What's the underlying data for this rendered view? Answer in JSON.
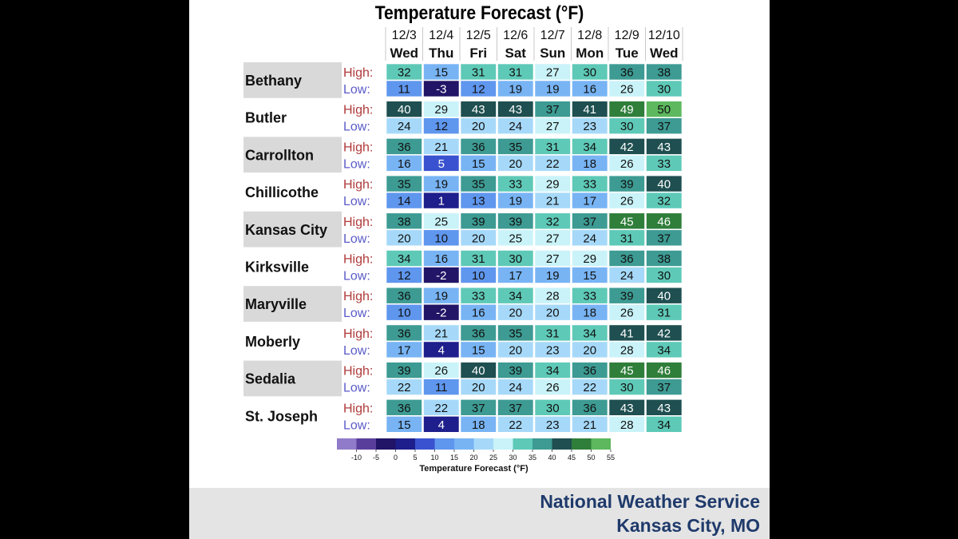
{
  "footer": {
    "line1": "National Weather Service",
    "line2": "Kansas City, MO"
  },
  "colors": {
    "panel_bg": "#ffffff",
    "row_shade": "#d9d9d9",
    "high_label": "#b03a3a",
    "low_label": "#5b5bc8",
    "footer_text": "#1f3a6b",
    "footer_bg": "#e4e4e4"
  },
  "chart_data": {
    "type": "table",
    "title": "Temperature Forecast (°F)",
    "dates": [
      "12/3",
      "12/4",
      "12/5",
      "12/6",
      "12/7",
      "12/8",
      "12/9",
      "12/10"
    ],
    "days": [
      "Wed",
      "Thu",
      "Fri",
      "Sat",
      "Sun",
      "Mon",
      "Tue",
      "Wed"
    ],
    "row_labels": {
      "high": "High:",
      "low": "Low:"
    },
    "cities": [
      {
        "name": "Bethany",
        "high": [
          32,
          15,
          31,
          31,
          27,
          30,
          36,
          38
        ],
        "low": [
          11,
          -3,
          12,
          19,
          19,
          16,
          26,
          30
        ]
      },
      {
        "name": "Butler",
        "high": [
          40,
          29,
          43,
          43,
          37,
          41,
          49,
          50
        ],
        "low": [
          24,
          12,
          20,
          24,
          27,
          23,
          30,
          37
        ]
      },
      {
        "name": "Carrollton",
        "high": [
          36,
          21,
          36,
          35,
          31,
          34,
          42,
          43
        ],
        "low": [
          16,
          5,
          15,
          20,
          22,
          18,
          26,
          33
        ]
      },
      {
        "name": "Chillicothe",
        "high": [
          35,
          19,
          35,
          33,
          29,
          33,
          39,
          40
        ],
        "low": [
          14,
          1,
          13,
          19,
          21,
          17,
          26,
          32
        ]
      },
      {
        "name": "Kansas City",
        "high": [
          38,
          25,
          39,
          39,
          32,
          37,
          45,
          46
        ],
        "low": [
          20,
          10,
          20,
          25,
          27,
          24,
          31,
          37
        ]
      },
      {
        "name": "Kirksville",
        "high": [
          34,
          16,
          31,
          30,
          27,
          29,
          36,
          38
        ],
        "low": [
          12,
          -2,
          10,
          17,
          19,
          15,
          24,
          30
        ]
      },
      {
        "name": "Maryville",
        "high": [
          36,
          19,
          33,
          34,
          28,
          33,
          39,
          40
        ],
        "low": [
          10,
          -2,
          16,
          20,
          20,
          18,
          26,
          31
        ]
      },
      {
        "name": "Moberly",
        "high": [
          36,
          21,
          36,
          35,
          31,
          34,
          41,
          42
        ],
        "low": [
          17,
          4,
          15,
          20,
          23,
          20,
          28,
          34
        ]
      },
      {
        "name": "Sedalia",
        "high": [
          39,
          26,
          40,
          39,
          34,
          36,
          45,
          46
        ],
        "low": [
          22,
          11,
          20,
          24,
          26,
          22,
          30,
          37
        ]
      },
      {
        "name": "St. Joseph",
        "high": [
          36,
          22,
          37,
          37,
          30,
          36,
          43,
          43
        ],
        "low": [
          15,
          4,
          18,
          22,
          23,
          21,
          28,
          34
        ]
      }
    ],
    "color_scale": {
      "label": "Temperature Forecast (°F)",
      "ticks": [
        -10,
        -5,
        0,
        5,
        10,
        15,
        20,
        25,
        30,
        35,
        40,
        45,
        50,
        55
      ],
      "bins": [
        {
          "min": -15,
          "max": -10,
          "color": "#8f7bc9"
        },
        {
          "min": -10,
          "max": -5,
          "color": "#5a3e9c"
        },
        {
          "min": -5,
          "max": 0,
          "color": "#221466"
        },
        {
          "min": 0,
          "max": 5,
          "color": "#1e1e8c"
        },
        {
          "min": 5,
          "max": 10,
          "color": "#3a52cf"
        },
        {
          "min": 10,
          "max": 15,
          "color": "#5f96ee"
        },
        {
          "min": 15,
          "max": 20,
          "color": "#78b4f4"
        },
        {
          "min": 20,
          "max": 25,
          "color": "#a6d9f9"
        },
        {
          "min": 25,
          "max": 30,
          "color": "#c9f3f9"
        },
        {
          "min": 30,
          "max": 35,
          "color": "#5ec9b7"
        },
        {
          "min": 35,
          "max": 40,
          "color": "#3d9b93"
        },
        {
          "min": 40,
          "max": 45,
          "color": "#1f4f50"
        },
        {
          "min": 45,
          "max": 50,
          "color": "#2f7e3a"
        },
        {
          "min": 50,
          "max": 55,
          "color": "#5db85e"
        }
      ]
    }
  }
}
